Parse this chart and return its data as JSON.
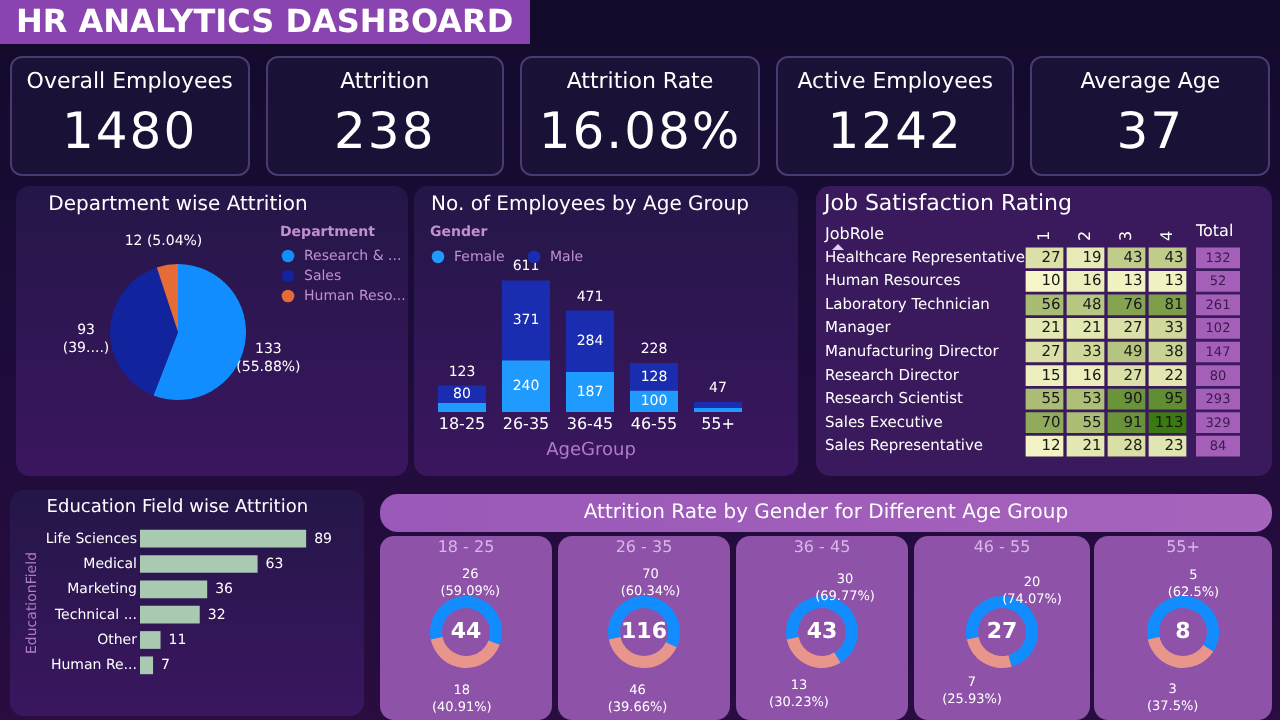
{
  "chart_data": [
    {
      "type": "other",
      "title": "HR ANALYTICS DASHBOARD",
      "annotations": [
        "Overall Employees",
        "1480",
        "Attrition",
        "238",
        "Attrition Rate",
        "16.08%",
        "Active Employees",
        "1242",
        "Average Age",
        "37"
      ]
    },
    {
      "type": "pie",
      "title": "Department wise Attrition",
      "legend_title": "Department",
      "legend": "right",
      "categories": [
        "Research & ...",
        "Sales",
        "Human Reso..."
      ],
      "values": [
        133,
        93,
        12
      ],
      "colors": [
        "#118dff",
        "#12239e",
        "#e66c37"
      ],
      "value_labels": [
        "133\n(55.88%)",
        "93\n(39....)",
        "12 (5.04%)"
      ]
    },
    {
      "type": "bar",
      "stacked": true,
      "title": "No. of Employees by Age Group",
      "xlabel": "AgeGroup",
      "legend_title": "Gender",
      "legend": "top left",
      "categories": [
        "18-25",
        "26-35",
        "36-45",
        "46-55",
        "55+"
      ],
      "series": [
        {
          "name": "Female",
          "color": "#1f9bff",
          "values": [
            43,
            240,
            187,
            100,
            20
          ],
          "value_labels": [
            null,
            "240",
            "187",
            "100",
            null
          ]
        },
        {
          "name": "Male",
          "color": "#1a2cb0",
          "values": [
            80,
            371,
            284,
            128,
            27
          ],
          "value_labels": [
            "80",
            "371",
            "284",
            "128",
            null
          ]
        }
      ],
      "totals": [
        "123",
        "611",
        "471",
        "228",
        "47"
      ]
    },
    {
      "type": "heatmap",
      "title": "Job Satisfaction Rating",
      "ylabel": "JobRole",
      "y2label": "Total",
      "data_labels": true,
      "categories": [
        "1",
        "2",
        "3",
        "4"
      ],
      "y_categories": [
        "Healthcare Representative",
        "Human Resources",
        "Laboratory Technician",
        "Manager",
        "Manufacturing Director",
        "Research Director",
        "Research Scientist",
        "Sales Executive",
        "Sales Representative"
      ],
      "y2_categories": [
        "132",
        "52",
        "261",
        "102",
        "147",
        "80",
        "293",
        "329",
        "84"
      ],
      "cells": [
        [
          27,
          19,
          43,
          43
        ],
        [
          10,
          16,
          13,
          13
        ],
        [
          56,
          48,
          76,
          81
        ],
        [
          21,
          21,
          27,
          33
        ],
        [
          27,
          33,
          49,
          38
        ],
        [
          15,
          16,
          27,
          22
        ],
        [
          55,
          53,
          90,
          95
        ],
        [
          70,
          55,
          91,
          113
        ],
        [
          12,
          21,
          28,
          23
        ]
      ]
    },
    {
      "type": "bar",
      "orientation": "horizontal",
      "title": "Education Field wise Attrition",
      "ylabel": "EducationField",
      "categories": [
        "Life Sciences",
        "Medical",
        "Marketing",
        "Technical ...",
        "Other",
        "Human Re..."
      ],
      "values": [
        89,
        63,
        36,
        32,
        11,
        7
      ],
      "color": "#a9c9b0",
      "data_labels": true
    },
    {
      "type": "other",
      "title": "Attrition Rate by Gender for Different Age Group"
    },
    {
      "type": "donut",
      "title": "18 - 25",
      "categories": [
        null,
        null
      ],
      "values": [
        26,
        18
      ],
      "colors": [
        "#118dff",
        "#e8968c"
      ],
      "value_labels": [
        "26\n(59.09%)",
        "18\n(40.91%)"
      ],
      "annotations": [
        "44"
      ]
    },
    {
      "type": "donut",
      "title": "26 - 35",
      "categories": [
        null,
        null
      ],
      "values": [
        70,
        46
      ],
      "colors": [
        "#118dff",
        "#e8968c"
      ],
      "value_labels": [
        "70\n(60.34%)",
        "46\n(39.66%)"
      ],
      "annotations": [
        "116"
      ]
    },
    {
      "type": "donut",
      "title": "36 - 45",
      "categories": [
        null,
        null
      ],
      "values": [
        30,
        13
      ],
      "colors": [
        "#118dff",
        "#e8968c"
      ],
      "value_labels": [
        "30\n(69.77%)",
        "13\n(30.23%)"
      ],
      "annotations": [
        "43"
      ]
    },
    {
      "type": "donut",
      "title": "46 - 55",
      "categories": [
        null,
        null
      ],
      "values": [
        20,
        7
      ],
      "colors": [
        "#118dff",
        "#e8968c"
      ],
      "value_labels": [
        "20\n(74.07%)",
        "7\n(25.93%)"
      ],
      "annotations": [
        "27"
      ]
    },
    {
      "type": "donut",
      "title": "55+",
      "categories": [
        null,
        null
      ],
      "values": [
        5,
        3
      ],
      "colors": [
        "#118dff",
        "#e8968c"
      ],
      "value_labels": [
        "5\n(62.5%)",
        "3\n(37.5%)"
      ],
      "annotations": [
        "8"
      ]
    }
  ]
}
